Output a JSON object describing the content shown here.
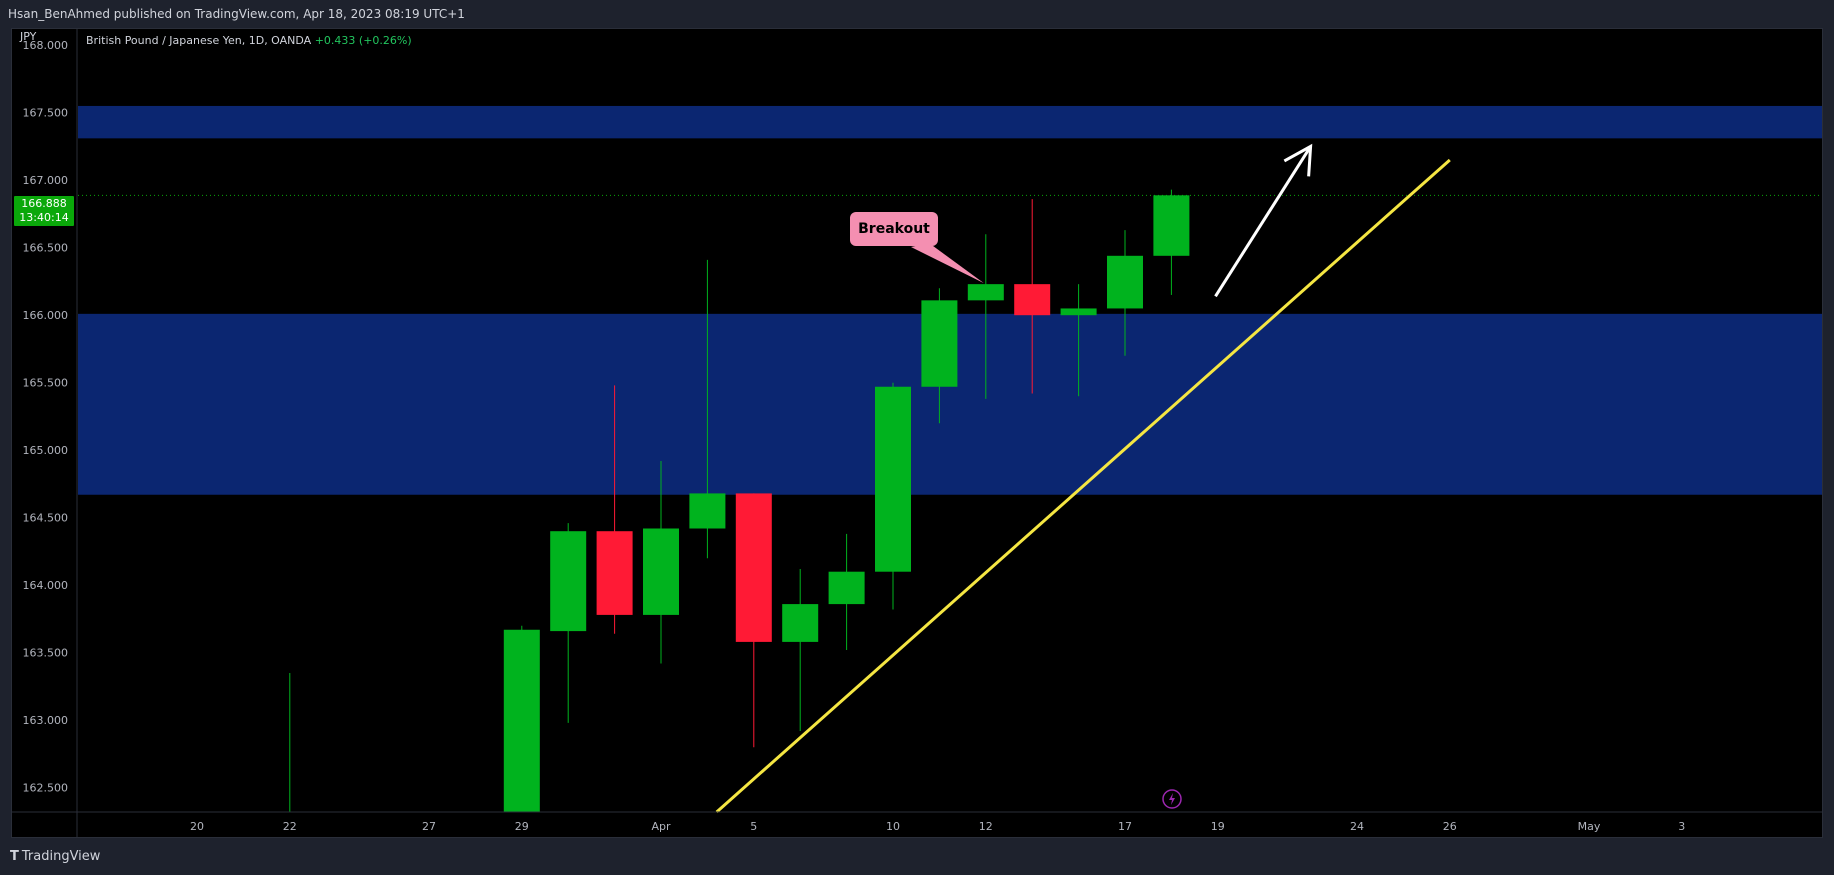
{
  "header": {
    "text": "Hsan_BenAhmed published on TradingView.com, Apr 18, 2023 08:19 UTC+1"
  },
  "currency": "JPY",
  "symbol": {
    "name": "British Pound / Japanese Yen, 1D, OANDA",
    "change": "+0.433 (+0.26%)"
  },
  "price_badge": {
    "price": "166.888",
    "countdown": "13:40:14"
  },
  "annotation": {
    "label": "Breakout"
  },
  "footer": {
    "brand": "TradingView"
  },
  "colors": {
    "up": "#00b31e",
    "down": "#ff1a35",
    "zone": "#0b2671",
    "trendline": "#f5e642",
    "arrow": "#ffffff",
    "price_line": "#0aa80a"
  },
  "chart_data": {
    "type": "candlestick",
    "ylim": [
      162.32,
      168.12
    ],
    "y_ticks": [
      {
        "value": 168.0,
        "label": "168.000"
      },
      {
        "value": 167.5,
        "label": "167.500"
      },
      {
        "value": 167.0,
        "label": "167.000"
      },
      {
        "value": 166.5,
        "label": "166.500"
      },
      {
        "value": 166.0,
        "label": "166.000"
      },
      {
        "value": 165.5,
        "label": "165.500"
      },
      {
        "value": 165.0,
        "label": "165.000"
      },
      {
        "value": 164.5,
        "label": "164.500"
      },
      {
        "value": 164.0,
        "label": "164.000"
      },
      {
        "value": 163.5,
        "label": "163.500"
      },
      {
        "value": 163.0,
        "label": "163.000"
      },
      {
        "value": 162.5,
        "label": "162.500"
      }
    ],
    "x_ticks": [
      {
        "index": -10,
        "label": "20"
      },
      {
        "index": -8,
        "label": "22"
      },
      {
        "index": -5,
        "label": "27"
      },
      {
        "index": -3,
        "label": "29"
      },
      {
        "index": 0,
        "label": "Apr"
      },
      {
        "index": 2,
        "label": "5"
      },
      {
        "index": 5,
        "label": "10"
      },
      {
        "index": 7,
        "label": "12"
      },
      {
        "index": 10,
        "label": "17"
      },
      {
        "index": 12,
        "label": "19"
      },
      {
        "index": 15,
        "label": "24"
      },
      {
        "index": 17,
        "label": "26"
      },
      {
        "index": 20,
        "label": "May"
      },
      {
        "index": 22,
        "label": "3"
      }
    ],
    "candles": [
      {
        "index": -8,
        "open": 162.32,
        "high": 163.35,
        "low": 162.32,
        "close": 162.32
      },
      {
        "index": -3,
        "open": 162.32,
        "high": 163.7,
        "low": 162.32,
        "close": 163.67
      },
      {
        "index": -2,
        "open": 163.66,
        "high": 164.46,
        "low": 162.98,
        "close": 164.4
      },
      {
        "index": -1,
        "open": 164.4,
        "high": 165.48,
        "low": 163.64,
        "close": 163.78
      },
      {
        "index": 0,
        "open": 163.78,
        "high": 164.92,
        "low": 163.42,
        "close": 164.42
      },
      {
        "index": 1,
        "open": 164.42,
        "high": 166.41,
        "low": 164.2,
        "close": 164.68
      },
      {
        "index": 2,
        "open": 164.68,
        "high": 164.68,
        "low": 162.8,
        "close": 163.58
      },
      {
        "index": 3,
        "open": 163.58,
        "high": 164.12,
        "low": 162.92,
        "close": 163.86
      },
      {
        "index": 4,
        "open": 163.86,
        "high": 164.38,
        "low": 163.52,
        "close": 164.1
      },
      {
        "index": 5,
        "open": 164.1,
        "high": 165.5,
        "low": 163.82,
        "close": 165.47
      },
      {
        "index": 6,
        "open": 165.47,
        "high": 166.2,
        "low": 165.2,
        "close": 166.11
      },
      {
        "index": 7,
        "open": 166.11,
        "high": 166.6,
        "low": 165.38,
        "close": 166.23
      },
      {
        "index": 8,
        "open": 166.23,
        "high": 166.86,
        "low": 165.42,
        "close": 166.0
      },
      {
        "index": 9,
        "open": 166.0,
        "high": 166.23,
        "low": 165.4,
        "close": 166.05
      },
      {
        "index": 10,
        "open": 166.05,
        "high": 166.63,
        "low": 165.7,
        "close": 166.44
      },
      {
        "index": 11,
        "open": 166.44,
        "high": 166.93,
        "low": 166.15,
        "close": 166.888
      }
    ],
    "current_price": 166.888,
    "zones": [
      {
        "from": 167.31,
        "to": 167.55
      },
      {
        "from": 164.67,
        "to": 166.01
      }
    ],
    "trendline": {
      "start": {
        "index": 1.2,
        "value": 162.32
      },
      "end": {
        "index": 17.0,
        "value": 167.15
      }
    },
    "arrow": {
      "start": {
        "index": 11.95,
        "value": 166.14
      },
      "end": {
        "index": 14.0,
        "value": 167.25
      }
    },
    "callout": {
      "index": 7,
      "value": 166.23
    }
  }
}
